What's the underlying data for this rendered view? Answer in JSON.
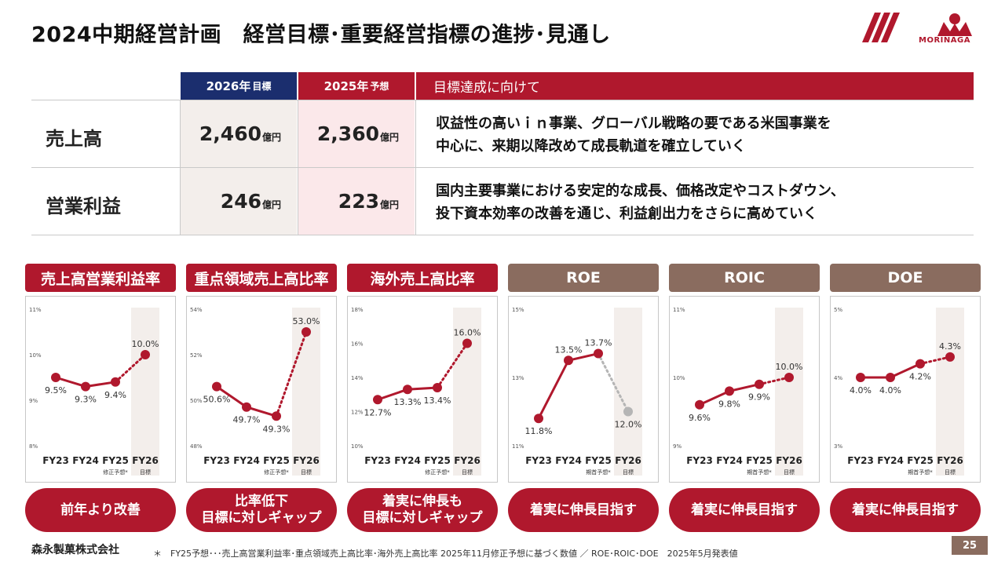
{
  "title": "2024中期経営計画　経営目標･重要経営指標の進捗･見通し",
  "logo_text": "MORINAGA",
  "table": {
    "header_2026_year": "2026年",
    "header_2026_kind": "目標",
    "header_2025_year": "2025年",
    "header_2025_kind": "予想",
    "header_goal": "目標達成に向けて",
    "rows": [
      {
        "label": "売上高",
        "v2026": "2,460",
        "v2025": "2,360",
        "unit": "億円",
        "goal_line1": "収益性の高いｉｎ事業、グローバル戦略の要である米国事業を",
        "goal_line2": "中心に、来期以降改めて成長軌道を確立していく"
      },
      {
        "label": "営業利益",
        "v2026": "246",
        "v2025": "223",
        "unit": "億円",
        "goal_line1": "国内主要事業における安定的な成長、価格改定やコストダウン、",
        "goal_line2": "投下資本効率の改善を通じ、利益創出力をさらに高めていく"
      }
    ]
  },
  "kpis": [
    {
      "title": "売上高営業利益率",
      "head_color": "#b0182d",
      "pill": "前年より改善",
      "y_ticks": [
        "11%",
        "10%",
        "9%",
        "8%"
      ],
      "fy25_note": "修正予想*",
      "fy26_faded": false
    },
    {
      "title": "重点領域売上高比率",
      "head_color": "#b0182d",
      "pill": "比率低下\n目標に対しギャップ",
      "y_ticks": [
        "54%",
        "52%",
        "50%",
        "48%"
      ],
      "fy25_note": "修正予想*",
      "fy26_faded": false
    },
    {
      "title": "海外売上高比率",
      "head_color": "#b0182d",
      "pill": "着実に伸長も\n目標に対しギャップ",
      "y_ticks": [
        "18%",
        "16%",
        "14%",
        "12%",
        "10%"
      ],
      "fy25_note": "修正予想*",
      "fy26_faded": false
    },
    {
      "title": "ROE",
      "head_color": "#8a6c5f",
      "pill": "着実に伸長目指す",
      "y_ticks": [
        "15%",
        "13%",
        "11%"
      ],
      "fy25_note": "期首予想*",
      "fy26_faded": true
    },
    {
      "title": "ROIC",
      "head_color": "#8a6c5f",
      "pill": "着実に伸長目指す",
      "y_ticks": [
        "11%",
        "10%",
        "9%"
      ],
      "fy25_note": "期首予想*",
      "fy26_faded": false
    },
    {
      "title": "DOE",
      "head_color": "#8a6c5f",
      "pill": "着実に伸長目指す",
      "y_ticks": [
        "5%",
        "4%",
        "3%"
      ],
      "fy25_note": "期首予想*",
      "fy26_faded": false
    }
  ],
  "x_categories": [
    "FY23",
    "FY24",
    "FY25",
    "FY26"
  ],
  "fy26_note": "目標",
  "chart_data": [
    {
      "type": "line",
      "title": "売上高営業利益率",
      "categories": [
        "FY23",
        "FY24",
        "FY25",
        "FY26"
      ],
      "values": [
        9.5,
        9.3,
        9.4,
        10.0
      ],
      "labels": [
        "9.5%",
        "9.3%",
        "9.4%",
        "10.0%"
      ],
      "ylim": [
        8,
        11
      ]
    },
    {
      "type": "line",
      "title": "重点領域売上高比率",
      "categories": [
        "FY23",
        "FY24",
        "FY25",
        "FY26"
      ],
      "values": [
        50.6,
        49.7,
        49.3,
        53.0
      ],
      "labels": [
        "50.6%",
        "49.7%",
        "49.3%",
        "53.0%"
      ],
      "ylim": [
        48,
        54
      ]
    },
    {
      "type": "line",
      "title": "海外売上高比率",
      "categories": [
        "FY23",
        "FY24",
        "FY25",
        "FY26"
      ],
      "values": [
        12.7,
        13.3,
        13.4,
        16.0
      ],
      "labels": [
        "12.7%",
        "13.3%",
        "13.4%",
        "16.0%"
      ],
      "ylim": [
        10,
        18
      ]
    },
    {
      "type": "line",
      "title": "ROE",
      "categories": [
        "FY23",
        "FY24",
        "FY25",
        "FY26"
      ],
      "values": [
        11.8,
        13.5,
        13.7,
        12.0
      ],
      "labels": [
        "11.8%",
        "13.5%",
        "13.7%",
        "12.0%"
      ],
      "ylim": [
        11,
        15
      ]
    },
    {
      "type": "line",
      "title": "ROIC",
      "categories": [
        "FY23",
        "FY24",
        "FY25",
        "FY26"
      ],
      "values": [
        9.6,
        9.8,
        9.9,
        10.0
      ],
      "labels": [
        "9.6%",
        "9.8%",
        "9.9%",
        "10.0%"
      ],
      "ylim": [
        9,
        11
      ]
    },
    {
      "type": "line",
      "title": "DOE",
      "categories": [
        "FY23",
        "FY24",
        "FY25",
        "FY26"
      ],
      "values": [
        4.0,
        4.0,
        4.2,
        4.3
      ],
      "labels": [
        "4.0%",
        "4.0%",
        "4.2%",
        "4.3%"
      ],
      "ylim": [
        3,
        5
      ]
    }
  ],
  "colors": {
    "accent": "#b0182d",
    "navy": "#1b2e6e",
    "brown": "#8a6c5f",
    "fy26_band": "#f3eeeb",
    "faded_point": "#b5b5b5"
  },
  "footer": {
    "company": "森永製菓株式会社",
    "note": "＊　FY25予想･･･売上高営業利益率･重点領域売上高比率･海外売上高比率 2025年11月修正予想に基づく数値 ／ ROE･ROIC･DOE　2025年5月発表値",
    "page": "25"
  }
}
